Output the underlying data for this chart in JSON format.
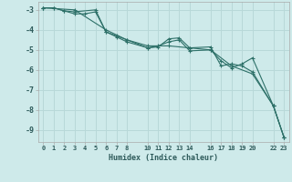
{
  "xlabel": "Humidex (Indice chaleur)",
  "background_color": "#ceeaea",
  "grid_color": "#b8d8d8",
  "line_color": "#2d7068",
  "xlim": [
    -0.5,
    23.5
  ],
  "ylim": [
    -9.6,
    -2.6
  ],
  "yticks": [
    -3,
    -4,
    -5,
    -6,
    -7,
    -8,
    -9
  ],
  "xtick_positions": [
    0,
    1,
    2,
    3,
    4,
    5,
    6,
    7,
    8,
    10,
    11,
    12,
    13,
    14,
    16,
    17,
    18,
    19,
    20,
    22,
    23
  ],
  "xtick_labels": [
    "0",
    "1",
    "2",
    "3",
    "4",
    "5",
    "6",
    "7",
    "8",
    "10",
    "11",
    "12",
    "13",
    "14",
    "16",
    "17",
    "18",
    "19",
    "20",
    "22",
    "23"
  ],
  "series": [
    {
      "x": [
        0,
        1,
        2,
        3,
        5,
        6,
        7,
        8,
        10,
        11,
        12,
        13,
        14,
        16,
        17,
        18,
        19,
        20,
        22,
        23
      ],
      "y": [
        -2.9,
        -2.9,
        -3.05,
        -3.1,
        -3.0,
        -4.1,
        -4.3,
        -4.5,
        -4.9,
        -4.85,
        -4.45,
        -4.4,
        -4.9,
        -4.85,
        -5.8,
        -5.7,
        -5.8,
        -6.1,
        -7.8,
        -9.35
      ]
    },
    {
      "x": [
        0,
        1,
        2,
        3,
        4,
        5,
        6,
        7,
        8,
        10,
        11,
        12,
        13,
        14,
        16,
        17,
        18,
        19,
        20,
        22,
        23
      ],
      "y": [
        -2.9,
        -2.9,
        -3.05,
        -3.2,
        -3.2,
        -3.1,
        -4.1,
        -4.35,
        -4.6,
        -4.9,
        -4.8,
        -4.6,
        -4.5,
        -5.05,
        -5.0,
        -5.55,
        -5.9,
        -5.7,
        -5.4,
        -7.8,
        -9.35
      ]
    },
    {
      "x": [
        0,
        3,
        6,
        8,
        10,
        12,
        14,
        16,
        18,
        20,
        22,
        23
      ],
      "y": [
        -2.9,
        -3.0,
        -4.0,
        -4.5,
        -4.8,
        -4.8,
        -4.9,
        -5.0,
        -5.8,
        -6.2,
        -7.8,
        -9.35
      ]
    }
  ]
}
